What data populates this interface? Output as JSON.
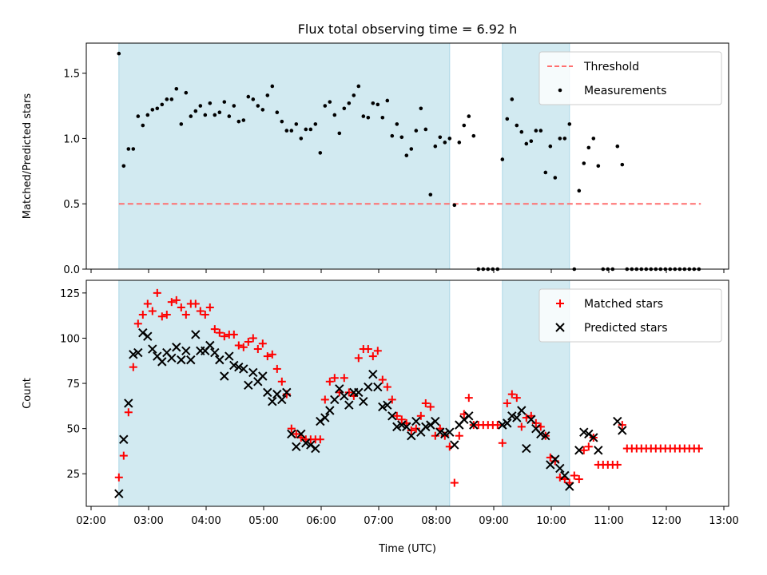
{
  "chart_data": [
    {
      "type": "scatter",
      "title": "Flux total observing time = 6.92 h",
      "xlabel": "",
      "ylabel": "Matched/Predicted stars",
      "xlim": [
        "01:55",
        "13:05"
      ],
      "ylim": [
        0,
        1.73
      ],
      "yticks": [
        0.0,
        0.5,
        1.0,
        1.5
      ],
      "ytick_labels": [
        "0.0",
        "0.5",
        "1.0",
        "1.5"
      ],
      "shaded_intervals": [
        [
          "02:29",
          "08:14"
        ],
        [
          "09:09",
          "10:19"
        ]
      ],
      "shade_color": "#add8e6",
      "threshold": {
        "name": "Threshold",
        "y": 0.5,
        "x_range": [
          "02:29",
          "12:36"
        ],
        "color": "#ff6f6f",
        "style": "dashed"
      },
      "legend": {
        "placement": "top-right",
        "entries": [
          "Threshold",
          "Measurements"
        ]
      },
      "series": [
        {
          "name": "Measurements",
          "color": "#000000",
          "x": [
            "02:29",
            "02:34",
            "02:39",
            "02:44",
            "02:49",
            "02:54",
            "02:59",
            "03:04",
            "03:09",
            "03:14",
            "03:19",
            "03:24",
            "03:29",
            "03:34",
            "03:39",
            "03:44",
            "03:49",
            "03:54",
            "03:59",
            "04:04",
            "04:09",
            "04:14",
            "04:19",
            "04:24",
            "04:29",
            "04:34",
            "04:39",
            "04:44",
            "04:49",
            "04:54",
            "04:59",
            "05:04",
            "05:09",
            "05:14",
            "05:19",
            "05:24",
            "05:29",
            "05:34",
            "05:39",
            "05:44",
            "05:49",
            "05:54",
            "05:59",
            "06:04",
            "06:09",
            "06:14",
            "06:19",
            "06:24",
            "06:29",
            "06:34",
            "06:39",
            "06:44",
            "06:49",
            "06:54",
            "06:59",
            "07:04",
            "07:09",
            "07:14",
            "07:19",
            "07:24",
            "07:29",
            "07:34",
            "07:39",
            "07:44",
            "07:49",
            "07:54",
            "07:59",
            "08:04",
            "08:09",
            "08:14",
            "08:19",
            "08:24",
            "08:29",
            "08:34",
            "08:39",
            "08:44",
            "08:49",
            "08:54",
            "08:59",
            "09:04",
            "09:09",
            "09:14",
            "09:19",
            "09:24",
            "09:29",
            "09:34",
            "09:39",
            "09:44",
            "09:49",
            "09:54",
            "09:59",
            "10:04",
            "10:09",
            "10:14",
            "10:19",
            "10:24",
            "10:29",
            "10:34",
            "10:39",
            "10:44",
            "10:49",
            "10:54",
            "10:59",
            "11:04",
            "11:09",
            "11:14",
            "11:19",
            "11:24",
            "11:29",
            "11:34",
            "11:39",
            "11:44",
            "11:49",
            "11:54",
            "11:59",
            "12:04",
            "12:09",
            "12:14",
            "12:19",
            "12:24",
            "12:29",
            "12:34"
          ],
          "y": [
            1.65,
            0.79,
            0.92,
            0.92,
            1.17,
            1.1,
            1.18,
            1.22,
            1.23,
            1.26,
            1.3,
            1.3,
            1.38,
            1.11,
            1.35,
            1.17,
            1.21,
            1.25,
            1.18,
            1.27,
            1.18,
            1.2,
            1.28,
            1.17,
            1.25,
            1.13,
            1.14,
            1.32,
            1.3,
            1.25,
            1.22,
            1.33,
            1.4,
            1.2,
            1.13,
            1.06,
            1.06,
            1.11,
            1.0,
            1.07,
            1.07,
            1.11,
            0.89,
            1.25,
            1.28,
            1.18,
            1.04,
            1.23,
            1.27,
            1.33,
            1.4,
            1.17,
            1.16,
            1.27,
            1.26,
            1.16,
            1.29,
            1.02,
            1.11,
            1.01,
            0.87,
            0.92,
            1.06,
            1.23,
            1.07,
            0.57,
            0.94,
            1.01,
            0.97,
            1.0,
            0.49,
            0.97,
            1.1,
            1.17,
            1.02,
            0.0,
            0.0,
            0.0,
            0.0,
            0.0,
            0.84,
            1.15,
            1.3,
            1.1,
            1.05,
            0.96,
            0.98,
            1.06,
            1.06,
            0.74,
            0.94,
            0.7,
            1.0,
            1.0,
            1.11,
            0.0,
            0.6,
            0.81,
            0.93,
            1.0,
            0.79,
            0.0,
            0.0,
            0.0,
            0.94,
            0.8,
            0.0,
            0.0,
            0.0,
            0.0,
            0.0,
            0.0,
            0.0,
            0.0,
            0.0,
            0.0,
            0.0,
            0.0,
            0.0,
            0.0,
            0.0,
            0.0
          ]
        }
      ]
    },
    {
      "type": "scatter",
      "title": "",
      "xlabel": "Time (UTC)",
      "ylabel": "Count",
      "xlim": [
        "01:55",
        "13:05"
      ],
      "ylim": [
        7,
        132
      ],
      "yticks": [
        25,
        50,
        75,
        100,
        125
      ],
      "ytick_labels": [
        "25",
        "50",
        "75",
        "100",
        "125"
      ],
      "xticks": [
        "02:00",
        "03:00",
        "04:00",
        "05:00",
        "06:00",
        "07:00",
        "08:00",
        "09:00",
        "10:00",
        "11:00",
        "12:00",
        "13:00"
      ],
      "shaded_intervals": [
        [
          "02:29",
          "08:14"
        ],
        [
          "09:09",
          "10:19"
        ]
      ],
      "shade_color": "#add8e6",
      "legend": {
        "placement": "top-right",
        "entries": [
          "Matched stars",
          "Predicted stars"
        ]
      },
      "series": [
        {
          "name": "Matched stars",
          "marker": "+",
          "color": "#ff0000",
          "x": [
            "02:29",
            "02:34",
            "02:39",
            "02:44",
            "02:49",
            "02:54",
            "02:59",
            "03:04",
            "03:09",
            "03:14",
            "03:19",
            "03:24",
            "03:29",
            "03:34",
            "03:39",
            "03:44",
            "03:49",
            "03:54",
            "03:59",
            "04:04",
            "04:09",
            "04:14",
            "04:19",
            "04:24",
            "04:29",
            "04:34",
            "04:39",
            "04:44",
            "04:49",
            "04:54",
            "04:59",
            "05:04",
            "05:09",
            "05:14",
            "05:19",
            "05:24",
            "05:29",
            "05:34",
            "05:39",
            "05:44",
            "05:49",
            "05:54",
            "05:59",
            "06:04",
            "06:09",
            "06:14",
            "06:19",
            "06:24",
            "06:29",
            "06:34",
            "06:39",
            "06:44",
            "06:49",
            "06:54",
            "06:59",
            "07:04",
            "07:09",
            "07:14",
            "07:19",
            "07:24",
            "07:29",
            "07:34",
            "07:39",
            "07:44",
            "07:49",
            "07:54",
            "07:59",
            "08:04",
            "08:09",
            "08:14",
            "08:19",
            "08:24",
            "08:29",
            "08:34",
            "08:39",
            "08:44",
            "08:49",
            "08:54",
            "08:59",
            "09:04",
            "09:09",
            "09:14",
            "09:19",
            "09:24",
            "09:29",
            "09:34",
            "09:39",
            "09:44",
            "09:49",
            "09:54",
            "09:59",
            "10:04",
            "10:09",
            "10:14",
            "10:19",
            "10:24",
            "10:29",
            "10:34",
            "10:39",
            "10:44",
            "10:49",
            "10:54",
            "10:59",
            "11:04",
            "11:09",
            "11:14",
            "11:19",
            "11:24",
            "11:29",
            "11:34",
            "11:39",
            "11:44",
            "11:49",
            "11:54",
            "11:59",
            "12:04",
            "12:09",
            "12:14",
            "12:19",
            "12:24",
            "12:29",
            "12:34"
          ],
          "y": [
            23,
            35,
            59,
            84,
            108,
            113,
            119,
            115,
            125,
            112,
            113,
            120,
            121,
            117,
            113,
            119,
            119,
            115,
            113,
            117,
            105,
            103,
            101,
            102,
            102,
            96,
            95,
            98,
            100,
            94,
            97,
            90,
            91,
            83,
            76,
            69,
            50,
            47,
            45,
            44,
            44,
            44,
            44,
            66,
            76,
            78,
            70,
            78,
            70,
            68,
            89,
            94,
            94,
            90,
            93,
            77,
            73,
            66,
            57,
            55,
            53,
            49,
            50,
            57,
            64,
            62,
            46,
            50,
            46,
            40,
            20,
            46,
            58,
            67,
            52,
            52,
            52,
            52,
            52,
            52,
            42,
            64,
            69,
            67,
            51,
            56,
            57,
            53,
            51,
            46,
            34,
            32,
            23,
            22,
            20,
            24,
            22,
            38,
            40,
            45,
            30,
            30,
            30,
            30,
            30,
            52,
            39,
            39,
            39,
            39,
            39,
            39,
            39,
            39,
            39,
            39,
            39,
            39,
            39,
            39,
            39,
            39
          ]
        },
        {
          "name": "Predicted stars",
          "marker": "x",
          "color": "#000000",
          "x": [
            "02:29",
            "02:34",
            "02:39",
            "02:44",
            "02:49",
            "02:54",
            "02:59",
            "03:04",
            "03:09",
            "03:14",
            "03:19",
            "03:24",
            "03:29",
            "03:34",
            "03:39",
            "03:44",
            "03:49",
            "03:54",
            "03:59",
            "04:04",
            "04:09",
            "04:14",
            "04:19",
            "04:24",
            "04:29",
            "04:34",
            "04:39",
            "04:44",
            "04:49",
            "04:54",
            "04:59",
            "05:04",
            "05:09",
            "05:14",
            "05:19",
            "05:24",
            "05:29",
            "05:34",
            "05:39",
            "05:44",
            "05:49",
            "05:54",
            "05:59",
            "06:04",
            "06:09",
            "06:14",
            "06:19",
            "06:24",
            "06:29",
            "06:34",
            "06:39",
            "06:44",
            "06:49",
            "06:54",
            "06:59",
            "07:04",
            "07:09",
            "07:14",
            "07:19",
            "07:24",
            "07:29",
            "07:34",
            "07:39",
            "07:44",
            "07:49",
            "07:54",
            "07:59",
            "08:04",
            "08:09",
            "08:14",
            "08:19",
            "08:24",
            "08:29",
            "08:34",
            "08:39",
            "09:09",
            "09:14",
            "09:19",
            "09:24",
            "09:29",
            "09:34",
            "09:39",
            "09:44",
            "09:49",
            "09:54",
            "09:59",
            "10:04",
            "10:09",
            "10:14",
            "10:19",
            "10:29",
            "10:34",
            "10:39",
            "10:44",
            "10:49",
            "11:09",
            "11:14"
          ],
          "y": [
            14,
            44,
            64,
            91,
            92,
            103,
            101,
            94,
            90,
            87,
            92,
            89,
            95,
            88,
            93,
            88,
            102,
            93,
            93,
            96,
            92,
            88,
            79,
            90,
            85,
            84,
            83,
            74,
            81,
            76,
            79,
            70,
            65,
            69,
            66,
            70,
            47,
            40,
            47,
            42,
            41,
            39,
            54,
            56,
            60,
            66,
            72,
            68,
            63,
            70,
            70,
            65,
            73,
            80,
            73,
            62,
            63,
            57,
            51,
            52,
            51,
            46,
            54,
            48,
            51,
            52,
            54,
            48,
            47,
            48,
            41,
            52,
            55,
            57,
            52,
            52,
            53,
            57,
            56,
            60,
            39,
            55,
            50,
            47,
            46,
            30,
            33,
            28,
            24,
            18,
            38,
            48,
            47,
            45,
            38,
            54,
            49
          ]
        }
      ]
    }
  ]
}
